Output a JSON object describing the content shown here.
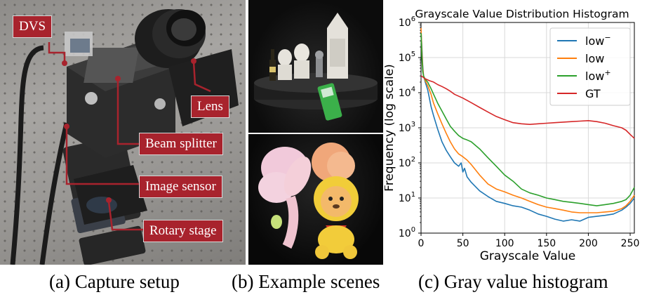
{
  "panel_a": {
    "callouts": {
      "dvs": "DVS",
      "lens": "Lens",
      "beam_splitter": "Beam splitter",
      "image_sensor": "Image sensor",
      "rotary_stage": "Rotary stage"
    },
    "accent_color": "#a8232d"
  },
  "captions": {
    "a": "(a) Capture setup",
    "b": "(b) Example scenes",
    "c": "(c) Gray value histogram"
  },
  "chart_data": {
    "type": "line",
    "title": "Grayscale Value Distribution Histogram",
    "xlabel": "Grayscale Value",
    "ylabel": "Frequency (log scale)",
    "xlim": [
      0,
      255
    ],
    "ylim": [
      1,
      1000000
    ],
    "yscale": "log",
    "grid": true,
    "legend_position": "top-right",
    "x_ticks": [
      "0",
      "50",
      "100",
      "150",
      "200",
      "250"
    ],
    "y_ticks": [
      {
        "base": "10",
        "exp": "0"
      },
      {
        "base": "10",
        "exp": "1"
      },
      {
        "base": "10",
        "exp": "2"
      },
      {
        "base": "10",
        "exp": "3"
      },
      {
        "base": "10",
        "exp": "4"
      },
      {
        "base": "10",
        "exp": "5"
      },
      {
        "base": "10",
        "exp": "6"
      }
    ],
    "series": [
      {
        "name": "low",
        "sup": "−",
        "color": "#1f77b4",
        "x": [
          0,
          1,
          2,
          3,
          5,
          8,
          10,
          12,
          15,
          20,
          25,
          30,
          35,
          40,
          45,
          48,
          50,
          52,
          55,
          60,
          70,
          80,
          90,
          100,
          110,
          120,
          130,
          140,
          150,
          160,
          170,
          180,
          190,
          200,
          210,
          220,
          230,
          240,
          245,
          250,
          255
        ],
        "y": [
          600000,
          200000,
          60000,
          30000,
          20000,
          12000,
          7000,
          4000,
          2200,
          900,
          400,
          230,
          150,
          100,
          80,
          100,
          55,
          70,
          40,
          28,
          16,
          11,
          8,
          7,
          6,
          5.5,
          4.5,
          3.5,
          3,
          2.5,
          2.2,
          2.4,
          2.2,
          2.8,
          3,
          3.2,
          3.5,
          4.5,
          5.5,
          7,
          10
        ]
      },
      {
        "name": "low",
        "sup": "",
        "color": "#ff7f0e",
        "x": [
          0,
          1,
          2,
          3,
          5,
          8,
          10,
          12,
          15,
          20,
          25,
          30,
          35,
          40,
          45,
          50,
          55,
          60,
          70,
          80,
          90,
          100,
          110,
          120,
          130,
          140,
          150,
          160,
          170,
          180,
          190,
          200,
          210,
          220,
          230,
          240,
          245,
          250,
          255
        ],
        "y": [
          700000,
          150000,
          50000,
          30000,
          22000,
          16000,
          12000,
          9000,
          5000,
          2500,
          1300,
          700,
          400,
          250,
          180,
          150,
          120,
          90,
          45,
          25,
          18,
          15,
          12,
          10,
          8,
          6.5,
          5.5,
          5,
          4.5,
          4,
          3.8,
          3.8,
          3.8,
          4,
          4.2,
          5,
          6,
          8,
          12
        ]
      },
      {
        "name": "low",
        "sup": "+",
        "color": "#2ca02c",
        "x": [
          0,
          1,
          2,
          3,
          5,
          8,
          10,
          12,
          15,
          20,
          25,
          30,
          35,
          40,
          45,
          50,
          55,
          60,
          70,
          80,
          90,
          100,
          110,
          120,
          130,
          140,
          150,
          160,
          170,
          180,
          190,
          200,
          210,
          220,
          230,
          240,
          245,
          250,
          255
        ],
        "y": [
          500000,
          100000,
          40000,
          30000,
          24000,
          20000,
          16000,
          13000,
          9000,
          5000,
          3000,
          1800,
          1100,
          800,
          600,
          500,
          450,
          400,
          250,
          140,
          80,
          45,
          30,
          18,
          14,
          12,
          10,
          9,
          8,
          7.5,
          7,
          6.5,
          6,
          6.5,
          7,
          8,
          9,
          12,
          20
        ]
      },
      {
        "name": "GT",
        "sup": "",
        "color": "#d62728",
        "x": [
          0,
          2,
          5,
          10,
          15,
          20,
          25,
          30,
          35,
          40,
          50,
          60,
          70,
          80,
          90,
          100,
          110,
          120,
          130,
          140,
          150,
          160,
          170,
          180,
          190,
          200,
          210,
          220,
          230,
          240,
          245,
          250,
          255
        ],
        "y": [
          30000,
          28000,
          25000,
          22000,
          20000,
          17000,
          15000,
          13000,
          11000,
          9000,
          7000,
          5200,
          3800,
          2800,
          2100,
          1700,
          1400,
          1300,
          1250,
          1300,
          1350,
          1400,
          1450,
          1500,
          1550,
          1600,
          1500,
          1350,
          1150,
          1000,
          850,
          650,
          500
        ]
      }
    ]
  }
}
